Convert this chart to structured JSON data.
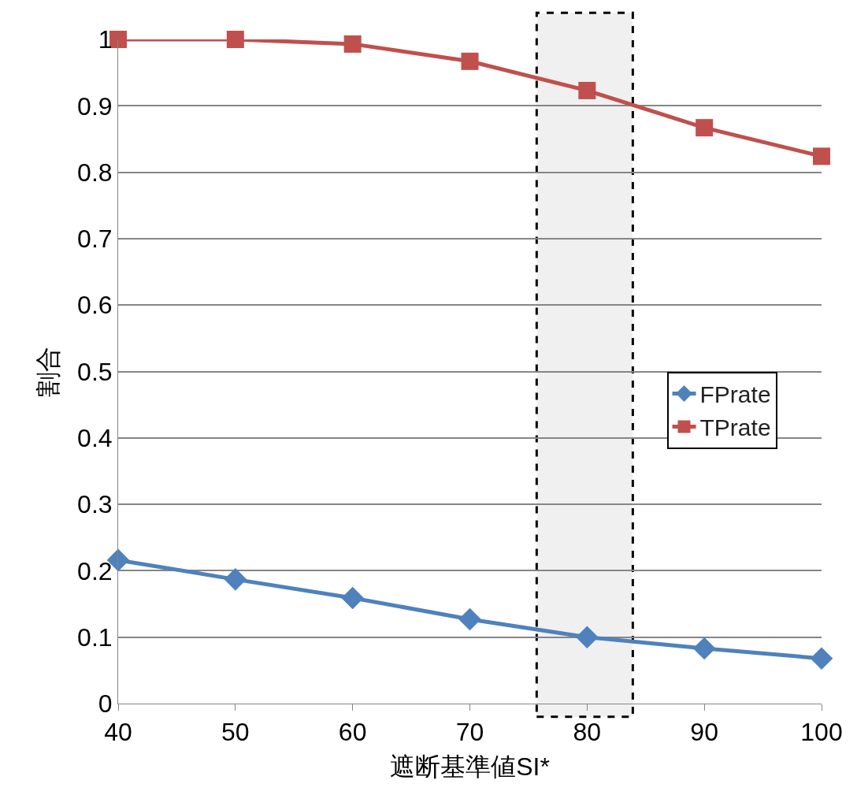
{
  "chart_data": {
    "type": "line",
    "xlabel": "遮断基準値SI*",
    "ylabel": "割合",
    "x": [
      40,
      50,
      60,
      70,
      80,
      90,
      100
    ],
    "series": [
      {
        "name": "FPrate",
        "color": "#4f81bd",
        "marker": "diamond",
        "values": [
          0.216,
          0.187,
          0.159,
          0.127,
          0.1,
          0.083,
          0.068
        ]
      },
      {
        "name": "TPrate",
        "color": "#c0504d",
        "marker": "square",
        "values": [
          1.0,
          1.0,
          0.993,
          0.967,
          0.923,
          0.867,
          0.824
        ]
      }
    ],
    "xlim": [
      40,
      100
    ],
    "xticks": [
      40,
      50,
      60,
      70,
      80,
      90,
      100
    ],
    "ylim": [
      0,
      1
    ],
    "yticks": [
      0,
      0.1,
      0.2,
      0.3,
      0.4,
      0.5,
      0.6,
      0.7,
      0.8,
      0.9,
      1
    ],
    "bands": [
      {
        "axis": "x",
        "from": 75.7,
        "to": 83.9,
        "color": "#000000"
      }
    ],
    "grid": "y",
    "legend": "right",
    "line_style": "solid"
  }
}
